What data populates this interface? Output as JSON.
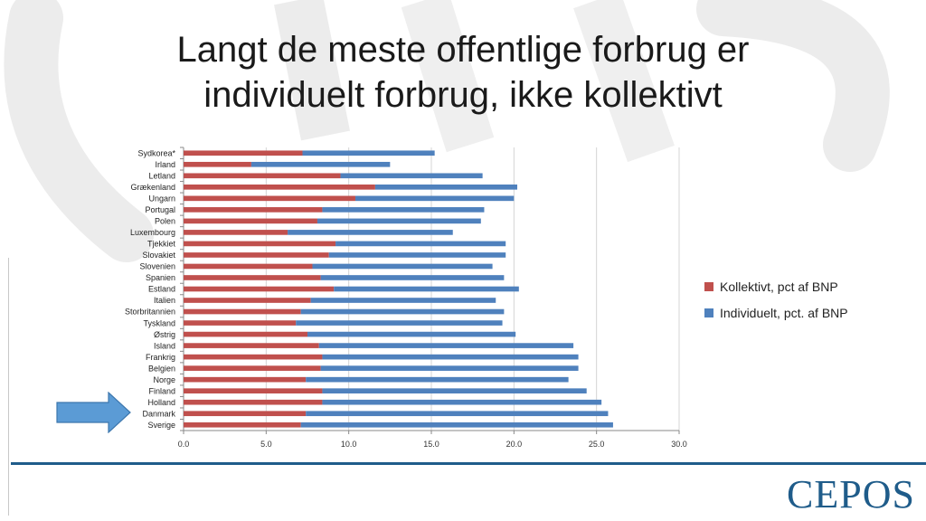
{
  "slide": {
    "title_line1": "Langt de meste offentlige forbrug er",
    "title_line2": "individuelt forbrug, ikke kollektivt",
    "logo": "CEPOS"
  },
  "colors": {
    "kollektivt": "#c0504d",
    "individuelt": "#4f81bd",
    "brand": "#1f5c8a"
  },
  "chart_data": {
    "type": "bar",
    "orientation": "horizontal",
    "stacked": true,
    "categories": [
      "Sydkorea*",
      "Irland",
      "Letland",
      "Grækenland",
      "Ungarn",
      "Portugal",
      "Polen",
      "Luxembourg",
      "Tjekkiet",
      "Slovakiet",
      "Slovenien",
      "Spanien",
      "Estland",
      "Italien",
      "Storbritannien",
      "Tyskland",
      "Østrig",
      "Island",
      "Frankrig",
      "Belgien",
      "Norge",
      "Finland",
      "Holland",
      "Danmark",
      "Sverige"
    ],
    "series": [
      {
        "name": "Kollektivt, pct af BNP",
        "values": [
          7.2,
          4.1,
          9.5,
          11.6,
          10.4,
          8.4,
          8.1,
          6.3,
          9.2,
          8.8,
          7.8,
          8.3,
          9.1,
          7.7,
          7.1,
          6.8,
          7.5,
          8.2,
          8.4,
          8.3,
          7.4,
          8.4,
          8.4,
          7.4,
          7.1
        ]
      },
      {
        "name": "Individuelt, pct. af BNP",
        "values": [
          8.0,
          8.4,
          8.6,
          8.6,
          9.6,
          9.8,
          9.9,
          10.0,
          10.3,
          10.7,
          10.9,
          11.1,
          11.2,
          11.2,
          12.3,
          12.5,
          12.6,
          15.4,
          15.5,
          15.6,
          15.9,
          16.0,
          16.9,
          18.3,
          18.9
        ]
      }
    ],
    "xlim": [
      0,
      30
    ],
    "xticks": [
      "0.0",
      "5.0",
      "10.0",
      "15.0",
      "20.0",
      "25.0",
      "30.0"
    ],
    "grid": true,
    "legend": "right",
    "annotation": "arrow pointing to Danmark"
  }
}
